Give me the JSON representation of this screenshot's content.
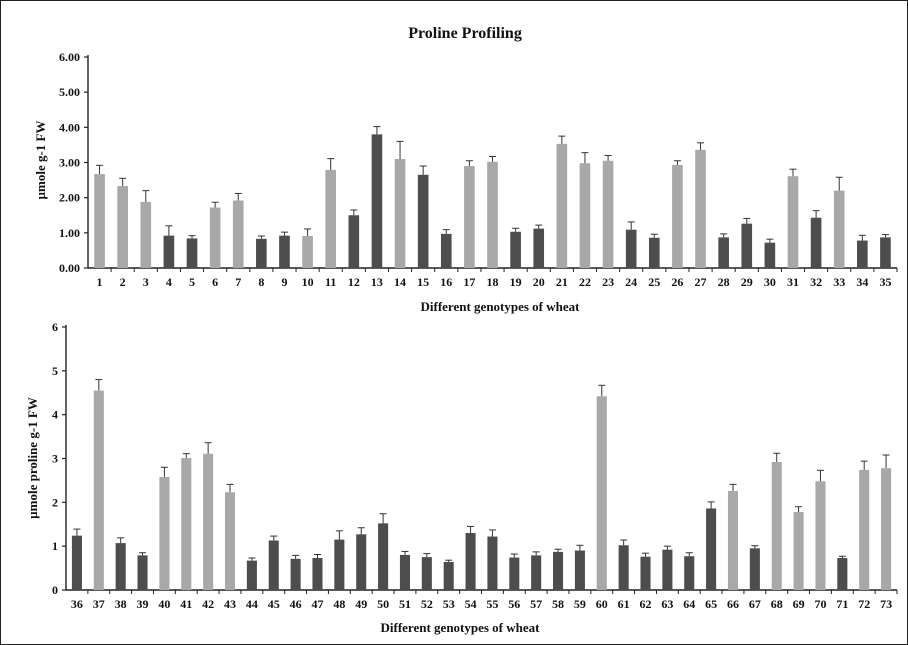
{
  "chart_data": [
    {
      "type": "bar",
      "title": "Proline Profiling",
      "xlabel": "Different genotypes of wheat",
      "ylabel": "µmole g-1 FW",
      "ylim": [
        0,
        6
      ],
      "yticks": [
        "0.00",
        "1.00",
        "2.00",
        "3.00",
        "4.00",
        "5.00",
        "6.00"
      ],
      "grid": false,
      "categories": [
        "1",
        "2",
        "3",
        "4",
        "5",
        "6",
        "7",
        "8",
        "9",
        "10",
        "11",
        "12",
        "13",
        "14",
        "15",
        "16",
        "17",
        "18",
        "19",
        "20",
        "21",
        "22",
        "23",
        "24",
        "25",
        "26",
        "27",
        "28",
        "29",
        "30",
        "31",
        "32",
        "33",
        "34",
        "35"
      ],
      "values": [
        2.67,
        2.33,
        1.88,
        0.92,
        0.84,
        1.72,
        1.92,
        0.83,
        0.92,
        0.91,
        2.79,
        1.5,
        3.8,
        3.1,
        2.65,
        0.97,
        2.9,
        3.02,
        1.03,
        1.12,
        3.53,
        2.98,
        3.05,
        1.09,
        0.86,
        2.93,
        3.36,
        0.87,
        1.26,
        0.72,
        2.61,
        1.43,
        2.2,
        0.78,
        0.87
      ],
      "errors": [
        0.25,
        0.22,
        0.32,
        0.28,
        0.08,
        0.15,
        0.2,
        0.08,
        0.1,
        0.2,
        0.32,
        0.15,
        0.22,
        0.5,
        0.25,
        0.12,
        0.15,
        0.15,
        0.1,
        0.1,
        0.22,
        0.3,
        0.15,
        0.22,
        0.1,
        0.12,
        0.2,
        0.1,
        0.15,
        0.1,
        0.2,
        0.2,
        0.38,
        0.15,
        0.08
      ],
      "bar_shade": [
        "l",
        "l",
        "l",
        "d",
        "d",
        "l",
        "l",
        "d",
        "d",
        "l",
        "l",
        "d",
        "d",
        "l",
        "d",
        "d",
        "l",
        "l",
        "d",
        "d",
        "l",
        "l",
        "l",
        "d",
        "d",
        "l",
        "l",
        "d",
        "d",
        "d",
        "l",
        "d",
        "l",
        "d",
        "d"
      ]
    },
    {
      "type": "bar",
      "title": "",
      "xlabel": "Different genotypes of wheat",
      "ylabel": "µmole proline g-1 FW",
      "ylim": [
        0,
        6
      ],
      "yticks": [
        "0",
        "1",
        "2",
        "3",
        "4",
        "5",
        "6"
      ],
      "grid": false,
      "categories": [
        "36",
        "37",
        "38",
        "39",
        "40",
        "41",
        "42",
        "43",
        "44",
        "45",
        "46",
        "47",
        "48",
        "49",
        "50",
        "51",
        "52",
        "53",
        "54",
        "55",
        "56",
        "57",
        "58",
        "59",
        "60",
        "61",
        "62",
        "63",
        "64",
        "65",
        "66",
        "67",
        "68",
        "69",
        "70",
        "71",
        "72",
        "73"
      ],
      "values": [
        1.24,
        4.55,
        1.07,
        0.79,
        2.58,
        3.01,
        3.11,
        2.23,
        0.67,
        1.13,
        0.71,
        0.73,
        1.15,
        1.27,
        1.52,
        0.8,
        0.75,
        0.64,
        1.3,
        1.22,
        0.74,
        0.79,
        0.87,
        0.9,
        4.42,
        1.02,
        0.76,
        0.92,
        0.77,
        1.86,
        2.26,
        0.95,
        2.92,
        1.78,
        2.48,
        0.73,
        2.74,
        2.78
      ],
      "errors": [
        0.15,
        0.25,
        0.12,
        0.06,
        0.22,
        0.1,
        0.25,
        0.18,
        0.06,
        0.1,
        0.08,
        0.08,
        0.2,
        0.15,
        0.22,
        0.08,
        0.08,
        0.04,
        0.15,
        0.15,
        0.08,
        0.08,
        0.06,
        0.12,
        0.25,
        0.12,
        0.08,
        0.08,
        0.08,
        0.15,
        0.15,
        0.06,
        0.2,
        0.12,
        0.25,
        0.04,
        0.2,
        0.3
      ],
      "bar_shade": [
        "d",
        "l",
        "d",
        "d",
        "l",
        "l",
        "l",
        "l",
        "d",
        "d",
        "d",
        "d",
        "d",
        "d",
        "d",
        "d",
        "d",
        "d",
        "d",
        "d",
        "d",
        "d",
        "d",
        "d",
        "l",
        "d",
        "d",
        "d",
        "d",
        "d",
        "l",
        "d",
        "l",
        "l",
        "l",
        "d",
        "l",
        "l"
      ]
    }
  ],
  "colors": {
    "light_bar": "#a8a8a8",
    "dark_bar": "#4d4d4d",
    "axis": "#222222",
    "text": "#111111",
    "error_bar": "#333333"
  }
}
